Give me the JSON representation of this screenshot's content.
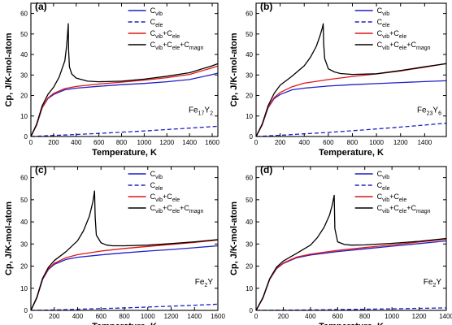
{
  "colors": {
    "vib": "#1f1fc8",
    "ele": "#1f1fc8",
    "vib_ele": "#e01616",
    "total": "#000000",
    "axis": "#000000"
  },
  "legend": [
    {
      "key": "vib",
      "main": "C",
      "sub": "vib",
      "style": "solid"
    },
    {
      "key": "ele",
      "main": "C",
      "sub": "ele",
      "style": "dashed"
    },
    {
      "key": "vib_ele",
      "main": "C",
      "sub": "vib",
      "rest": [
        [
          "+C",
          "ele"
        ]
      ],
      "style": "solid"
    },
    {
      "key": "total",
      "main": "C",
      "sub": "vib",
      "rest": [
        [
          "+C",
          "ele"
        ],
        [
          "+C",
          "magn"
        ]
      ],
      "style": "solid"
    }
  ],
  "chart_data": [
    {
      "type": "line",
      "panel_label": "(a)",
      "material": {
        "base": "Fe",
        "parts": [
          [
            "17",
            "Fe"
          ],
          [
            "2",
            "Y"
          ]
        ],
        "text": "Fe17Y2"
      },
      "xlabel": "Temperature, K",
      "ylabel": "Cp, J/K-mol-atom",
      "xlim": [
        0,
        1650
      ],
      "ylim": [
        0,
        65
      ],
      "xticks": [
        0,
        200,
        400,
        600,
        800,
        1000,
        1200,
        1400,
        1600
      ],
      "yticks": [
        0,
        10,
        20,
        30,
        40,
        50,
        60
      ],
      "magnetic_peak": {
        "T": 330,
        "Cp": 55
      },
      "series": [
        {
          "key": "vib",
          "x": [
            0,
            50,
            100,
            150,
            200,
            300,
            400,
            600,
            800,
            1000,
            1200,
            1400,
            1600,
            1650
          ],
          "y": [
            0,
            5.5,
            14,
            18.5,
            20.5,
            22.8,
            23.6,
            24.5,
            25.3,
            25.9,
            26.7,
            27.8,
            30.2,
            30.9
          ]
        },
        {
          "key": "ele",
          "x": [
            0,
            200,
            400,
            600,
            800,
            1000,
            1200,
            1400,
            1650
          ],
          "y": [
            0,
            0.5,
            1.0,
            1.5,
            2.1,
            2.7,
            3.4,
            4.1,
            5.0
          ]
        },
        {
          "key": "vib_ele",
          "x": [
            0,
            50,
            100,
            150,
            200,
            300,
            400,
            600,
            800,
            1000,
            1200,
            1400,
            1600,
            1650
          ],
          "y": [
            0,
            5.6,
            14.2,
            18.8,
            21.0,
            23.4,
            24.4,
            25.6,
            26.5,
            27.5,
            28.7,
            30.3,
            33.5,
            34.4
          ]
        },
        {
          "key": "total",
          "x": [
            0,
            50,
            100,
            150,
            200,
            250,
            300,
            315,
            325,
            330,
            333,
            340,
            360,
            400,
            500,
            600,
            800,
            1000,
            1200,
            1400,
            1600,
            1650
          ],
          "y": [
            0,
            6,
            15,
            20.5,
            24,
            29,
            37,
            44,
            51,
            55,
            42,
            34,
            30.5,
            28.5,
            27,
            26.7,
            27,
            28,
            29.4,
            31.1,
            34.5,
            35.5
          ]
        }
      ]
    },
    {
      "type": "line",
      "panel_label": "(b)",
      "material": {
        "base": "Fe",
        "parts": [
          [
            "23",
            "Fe"
          ],
          [
            "6",
            "Y"
          ]
        ],
        "text": "Fe23Y6"
      },
      "xlabel": "Temperature, K",
      "ylabel": "Cp, J/K-mol-atom",
      "xlim": [
        0,
        1580
      ],
      "ylim": [
        0,
        65
      ],
      "xticks": [
        0,
        200,
        400,
        600,
        800,
        1000,
        1200,
        1400
      ],
      "yticks": [
        0,
        10,
        20,
        30,
        40,
        50,
        60
      ],
      "magnetic_peak": {
        "T": 560,
        "Cp": 55
      },
      "series": [
        {
          "key": "vib",
          "x": [
            0,
            50,
            100,
            150,
            200,
            300,
            400,
            600,
            800,
            1000,
            1200,
            1400,
            1580
          ],
          "y": [
            0,
            5.5,
            14,
            18.5,
            20.5,
            22.8,
            23.6,
            24.6,
            25.3,
            25.8,
            26.3,
            26.8,
            27.2
          ]
        },
        {
          "key": "ele",
          "x": [
            0,
            200,
            400,
            600,
            800,
            1000,
            1200,
            1400,
            1580
          ],
          "y": [
            0,
            0.6,
            1.3,
            2.0,
            2.8,
            3.7,
            4.6,
            5.6,
            6.5
          ]
        },
        {
          "key": "vib_ele",
          "x": [
            0,
            50,
            100,
            150,
            200,
            300,
            400,
            600,
            800,
            1000,
            1200,
            1400,
            1580
          ],
          "y": [
            0,
            5.6,
            14.3,
            19.0,
            21.5,
            24.3,
            26.0,
            27.8,
            29.3,
            30.5,
            32.0,
            33.8,
            35.6
          ]
        },
        {
          "key": "total",
          "x": [
            0,
            50,
            100,
            150,
            200,
            300,
            400,
            450,
            500,
            530,
            550,
            558,
            562,
            570,
            600,
            650,
            700,
            800,
            1000,
            1200,
            1400,
            1580
          ],
          "y": [
            0,
            6,
            15,
            21,
            25,
            29.5,
            34.5,
            38.5,
            44,
            49,
            53,
            55,
            45,
            38,
            33,
            31.5,
            30.7,
            30.3,
            30.6,
            32.2,
            34,
            35.5
          ]
        }
      ]
    },
    {
      "type": "line",
      "panel_label": "(c)",
      "material": {
        "base": "Fe",
        "parts": [
          [
            "2",
            "Fe"
          ]
        ],
        "tail": "Y",
        "text": "Fe2Y"
      },
      "xlabel": "Temperature, K",
      "ylabel": "Cp, J/K-mol-atom",
      "xlim": [
        0,
        1600
      ],
      "ylim": [
        0,
        65
      ],
      "xticks": [
        0,
        200,
        400,
        600,
        800,
        1000,
        1200,
        1400,
        1600
      ],
      "yticks": [
        0,
        10,
        20,
        30,
        40,
        50,
        60
      ],
      "magnetic_peak": {
        "T": 545,
        "Cp": 54
      },
      "series": [
        {
          "key": "vib",
          "x": [
            0,
            50,
            100,
            150,
            200,
            300,
            400,
            600,
            800,
            1000,
            1200,
            1400,
            1600
          ],
          "y": [
            0,
            5.5,
            14,
            18.5,
            20.8,
            23,
            24,
            25.1,
            26,
            26.8,
            27.5,
            28.3,
            29.2
          ]
        },
        {
          "key": "ele",
          "x": [
            0,
            200,
            400,
            600,
            800,
            1000,
            1200,
            1400,
            1600
          ],
          "y": [
            0,
            0.2,
            0.5,
            0.8,
            1.1,
            1.5,
            1.9,
            2.3,
            2.8
          ]
        },
        {
          "key": "vib_ele",
          "x": [
            0,
            50,
            100,
            150,
            200,
            300,
            400,
            600,
            800,
            1000,
            1200,
            1400,
            1600
          ],
          "y": [
            0,
            5.6,
            14.2,
            18.8,
            21.3,
            23.8,
            25.2,
            26.8,
            28,
            28.9,
            29.8,
            30.7,
            31.8
          ]
        },
        {
          "key": "total",
          "x": [
            0,
            50,
            100,
            150,
            200,
            300,
            400,
            450,
            500,
            530,
            545,
            550,
            560,
            600,
            650,
            700,
            800,
            1000,
            1200,
            1400,
            1600
          ],
          "y": [
            0,
            5.8,
            14.5,
            19.5,
            22.5,
            26.5,
            31.5,
            36,
            42.5,
            49,
            54,
            42,
            34,
            30.5,
            29.5,
            29.2,
            29.2,
            29.5,
            30.2,
            31,
            32
          ]
        }
      ]
    },
    {
      "type": "line",
      "panel_label": "(d)",
      "material": {
        "base": "Fe",
        "parts": [
          [
            "2",
            "Fe"
          ]
        ],
        "tail": "Y",
        "text": "Fe2Y"
      },
      "xlabel": "Temperature, K",
      "ylabel": "Cp, J/K-mol-atom",
      "xlim": [
        0,
        1400
      ],
      "ylim": [
        0,
        65
      ],
      "xticks": [
        0,
        200,
        400,
        600,
        800,
        1000,
        1200,
        1400
      ],
      "yticks": [
        0,
        10,
        20,
        30,
        40,
        50,
        60
      ],
      "magnetic_peak": {
        "T": 575,
        "Cp": 52
      },
      "series": [
        {
          "key": "vib",
          "x": [
            0,
            50,
            100,
            150,
            200,
            300,
            400,
            600,
            800,
            1000,
            1200,
            1400
          ],
          "y": [
            0,
            5.5,
            14,
            18.8,
            21.2,
            23.8,
            25,
            26.6,
            27.8,
            29,
            30.2,
            31.4
          ]
        },
        {
          "key": "ele",
          "x": [
            0,
            200,
            400,
            600,
            800,
            1000,
            1200,
            1400
          ],
          "y": [
            0,
            0.1,
            0.2,
            0.35,
            0.5,
            0.7,
            0.9,
            1.1
          ]
        },
        {
          "key": "vib_ele",
          "x": [
            0,
            50,
            100,
            150,
            200,
            300,
            400,
            600,
            800,
            1000,
            1200,
            1400
          ],
          "y": [
            0,
            5.6,
            14.1,
            19,
            21.4,
            24.1,
            25.4,
            27.1,
            28.4,
            29.6,
            30.9,
            32.2
          ]
        },
        {
          "key": "total",
          "x": [
            0,
            50,
            100,
            150,
            200,
            300,
            400,
            450,
            500,
            540,
            560,
            575,
            580,
            600,
            650,
            700,
            800,
            1000,
            1200,
            1400
          ],
          "y": [
            0,
            5.8,
            14.3,
            19.5,
            22.3,
            25.8,
            29.5,
            32.8,
            37.5,
            43,
            47.5,
            52,
            37,
            31,
            29.8,
            29.5,
            29.6,
            30.3,
            31.2,
            32.5
          ]
        }
      ]
    }
  ]
}
